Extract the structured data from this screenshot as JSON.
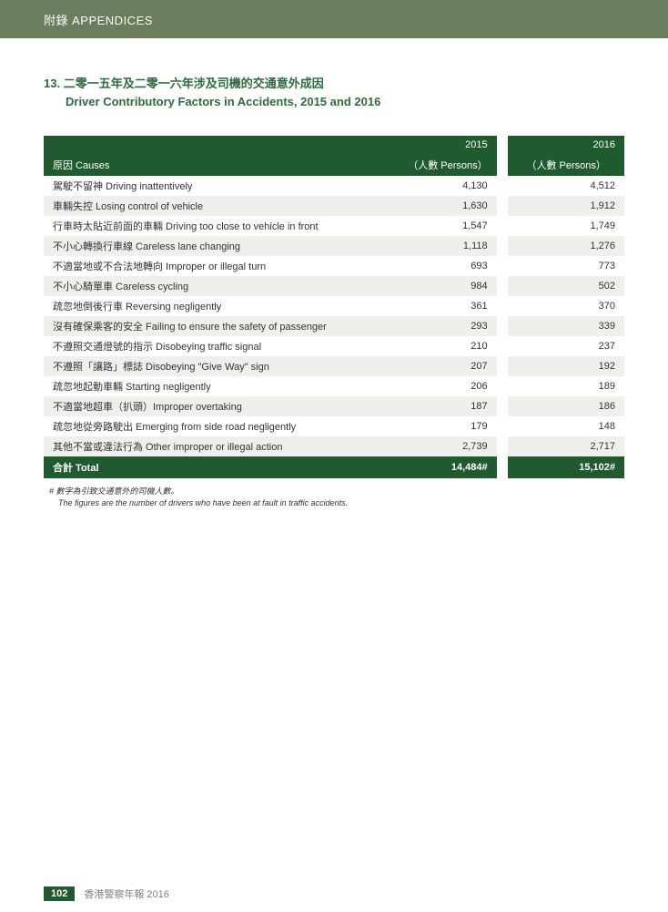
{
  "header": {
    "label": "附錄 APPENDICES"
  },
  "title": {
    "number": "13.",
    "zh": "二零一五年及二零一六年涉及司機的交通意外成因",
    "en": "Driver Contributory Factors in Accidents, 2015 and 2016"
  },
  "table": {
    "year_a": "2015",
    "year_b": "2016",
    "causes_label": "原因 Causes",
    "persons_label": "（人數 Persons）",
    "rows": [
      {
        "cause": "駕駛不留神 Driving inattentively",
        "a": "4,130",
        "b": "4,512"
      },
      {
        "cause": "車輛失控 Losing control of vehicle",
        "a": "1,630",
        "b": "1,912"
      },
      {
        "cause": "行車時太貼近前面的車輛 Driving too close to vehicle in front",
        "a": "1,547",
        "b": "1,749"
      },
      {
        "cause": "不小心轉換行車線 Careless lane changing",
        "a": "1,118",
        "b": "1,276"
      },
      {
        "cause": "不適當地或不合法地轉向 Improper or illegal turn",
        "a": "693",
        "b": "773"
      },
      {
        "cause": "不小心騎單車 Careless cycling",
        "a": "984",
        "b": "502"
      },
      {
        "cause": "疏忽地倒後行車 Reversing negligently",
        "a": "361",
        "b": "370"
      },
      {
        "cause": "沒有確保乘客的安全 Failing to ensure the safety of passenger",
        "a": "293",
        "b": "339"
      },
      {
        "cause": "不遵照交通燈號的指示 Disobeying traffic signal",
        "a": "210",
        "b": "237"
      },
      {
        "cause": "不遵照「讓路」標誌 Disobeying \"Give Way\" sign",
        "a": "207",
        "b": "192"
      },
      {
        "cause": "疏忽地起動車輛 Starting negligently",
        "a": "206",
        "b": "189"
      },
      {
        "cause": "不適當地超車（扒頭）Improper overtaking",
        "a": "187",
        "b": "186"
      },
      {
        "cause": "疏忽地從旁路駛出 Emerging from side road negligently",
        "a": "179",
        "b": "148"
      },
      {
        "cause": "其他不當或違法行為 Other improper or illegal action",
        "a": "2,739",
        "b": "2,717"
      }
    ],
    "total_label": "合計 Total",
    "total_a": "14,484#",
    "total_b": "15,102#"
  },
  "footnote": {
    "zh": "# 數字為引致交通意外的司機人數。",
    "en": "The figures are the number of drivers who have been at fault in traffic accidents."
  },
  "footer": {
    "page": "102",
    "text": "香港警察年報 2016"
  },
  "colors": {
    "header_green": "#6b7d5c",
    "dark_green": "#1f5b2e",
    "title_green": "#2e6b3e",
    "row_stripe": "#eef0ec"
  }
}
